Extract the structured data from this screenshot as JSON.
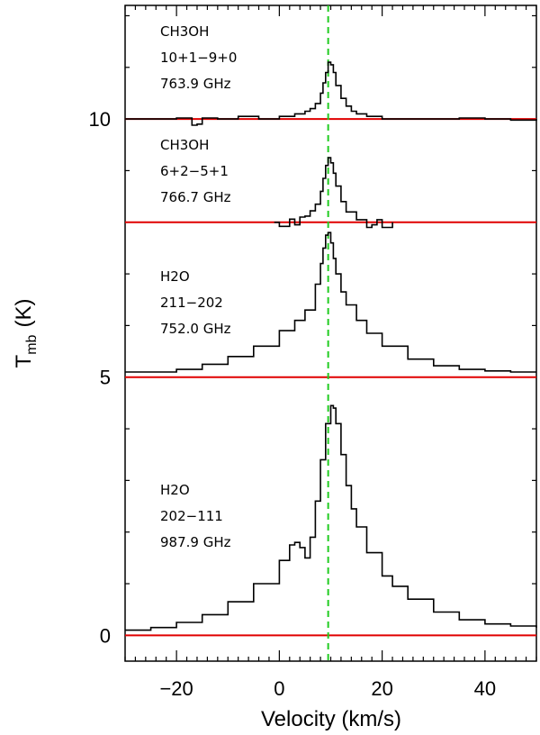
{
  "chart_data": {
    "type": "line",
    "title": "",
    "xlabel": "Velocity (km/s)",
    "ylabel_main": "T",
    "ylabel_sub": "mb",
    "ylabel_unit": "(K)",
    "xlim": [
      -30,
      50
    ],
    "ylim": [
      -0.5,
      12.2
    ],
    "xticks_major": [
      -20,
      0,
      20,
      40
    ],
    "xtick_labels": [
      "−20",
      "0",
      "20",
      "40"
    ],
    "yticks_major": [
      0,
      5,
      10
    ],
    "ytick_labels": [
      "0",
      "5",
      "10"
    ],
    "reference_velocity": 9.5,
    "series": [
      {
        "name": "CH3OH 10(+1)-9(+0) 763.9 GHz",
        "baseline": 10.0,
        "label_lines": [
          "CH3OH",
          "10+1−9+0",
          "763.9 GHz"
        ],
        "x": [
          -30,
          -25,
          -20,
          -17,
          -16,
          -15,
          -12,
          -8,
          -4,
          0,
          3,
          5,
          6,
          7,
          8,
          8.5,
          9,
          9.5,
          10,
          10.5,
          11,
          12,
          13,
          14,
          15,
          17,
          20,
          25,
          30,
          35,
          40,
          45,
          50
        ],
        "y": [
          10.0,
          10.0,
          10.02,
          9.88,
          9.9,
          10.02,
          10.0,
          10.05,
          10.0,
          10.05,
          10.1,
          10.15,
          10.2,
          10.3,
          10.5,
          10.7,
          10.9,
          11.1,
          11.05,
          10.9,
          10.65,
          10.4,
          10.25,
          10.15,
          10.1,
          10.05,
          10.0,
          10.0,
          10.0,
          10.02,
          10.0,
          9.98,
          10.0
        ]
      },
      {
        "name": "CH3OH 6(+2)-5(+1) 766.7 GHz",
        "baseline": 8.0,
        "label_lines": [
          "CH3OH",
          "6+2−5+1",
          "766.7 GHz"
        ],
        "x": [
          -1,
          0,
          2,
          3,
          4,
          5,
          6,
          7,
          8,
          8.5,
          9,
          9.5,
          10,
          10.5,
          11,
          12,
          13,
          15,
          17,
          18,
          19,
          20,
          22
        ],
        "y": [
          8.0,
          7.92,
          8.06,
          7.95,
          8.1,
          8.12,
          8.22,
          8.35,
          8.6,
          8.85,
          9.1,
          9.25,
          9.15,
          8.95,
          8.7,
          8.4,
          8.2,
          8.05,
          7.9,
          7.95,
          8.05,
          7.9,
          8.0
        ]
      },
      {
        "name": "H2O 2(11)-2(02) 752.0 GHz",
        "baseline": 5.0,
        "label_lines": [
          "H2O",
          "211−202",
          "752.0 GHz"
        ],
        "x": [
          -30,
          -25,
          -20,
          -15,
          -10,
          -5,
          0,
          3,
          5,
          7,
          8,
          8.5,
          9,
          9.5,
          10,
          10.5,
          11,
          12,
          13,
          15,
          17,
          20,
          25,
          30,
          35,
          40,
          45,
          50
        ],
        "y": [
          5.1,
          5.1,
          5.15,
          5.25,
          5.4,
          5.6,
          5.9,
          6.1,
          6.3,
          6.8,
          7.2,
          7.5,
          7.75,
          7.8,
          7.6,
          7.3,
          7.0,
          6.65,
          6.4,
          6.1,
          5.85,
          5.6,
          5.35,
          5.22,
          5.15,
          5.12,
          5.1,
          5.1
        ]
      },
      {
        "name": "H2O 2(02)-1(11) 987.9 GHz",
        "baseline": 0.0,
        "label_lines": [
          "H2O",
          "202−111",
          "987.9 GHz"
        ],
        "x": [
          -30,
          -25,
          -20,
          -15,
          -10,
          -5,
          0,
          2,
          3,
          4,
          5,
          6,
          7,
          8,
          9,
          10,
          10.5,
          11,
          12,
          13,
          14,
          15,
          17,
          20,
          22,
          25,
          30,
          35,
          40,
          45,
          50
        ],
        "y": [
          0.1,
          0.15,
          0.25,
          0.4,
          0.65,
          1.0,
          1.45,
          1.75,
          1.8,
          1.7,
          1.5,
          1.9,
          2.6,
          3.4,
          4.1,
          4.45,
          4.4,
          4.1,
          3.5,
          2.9,
          2.45,
          2.1,
          1.6,
          1.15,
          0.95,
          0.7,
          0.45,
          0.3,
          0.22,
          0.18,
          0.15
        ]
      }
    ]
  },
  "labels": {
    "s1_line1": "CH3OH",
    "s1_line2": "10+1−9+0",
    "s1_line3": "763.9 GHz",
    "s2_line1": "CH3OH",
    "s2_line2": "6+2−5+1",
    "s2_line3": "766.7 GHz",
    "s3_line1": "H2O",
    "s3_line2": "211−202",
    "s3_line3": "752.0 GHz",
    "s4_line1": "H2O",
    "s4_line2": "202−111",
    "s4_line3": "987.9 GHz"
  },
  "colors": {
    "spectrum": "#000000",
    "baseline": "#e00000",
    "reference": "#22cc22",
    "axis": "#000000"
  }
}
